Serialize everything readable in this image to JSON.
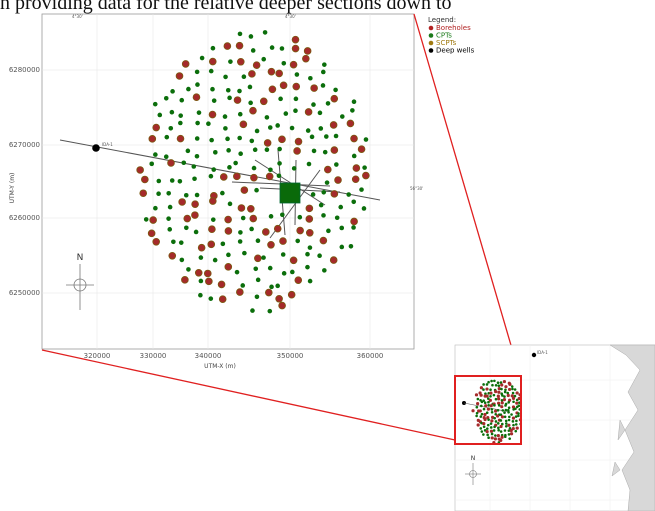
{
  "caption": "n providing data for the relative deeper sections down to",
  "main_map": {
    "x_ticks": [
      "320000",
      "330000",
      "340000",
      "350000",
      "360000"
    ],
    "y_ticks": [
      "6280000",
      "6270000",
      "6260000",
      "6250000"
    ],
    "top_ticks": [
      "4°30'",
      "4°30'"
    ],
    "side_tick": "56°30'",
    "xlabel": "UTM-X (m)",
    "ylabel": "UTM-Y (m)",
    "north_label": "N",
    "well_label": "IDA-1"
  },
  "legend": {
    "title": "Legend:",
    "items": [
      {
        "label": "Boreholes",
        "color": "#b22222"
      },
      {
        "label": "CPTs",
        "color": "#1a7a1a"
      },
      {
        "label": "SCPTs",
        "color": "#a07a10"
      },
      {
        "label": "Deep wells",
        "color": "#000000"
      }
    ]
  },
  "inset_map": {
    "well_label": "IDA-1",
    "north_label": "N",
    "highlight_color": "#e02020"
  },
  "colors": {
    "borehole_fill": "#a52a2a",
    "cpt_fill": "#0b6e0b",
    "platform": "#0a6a0a",
    "leader_line": "#e02020",
    "land": "#d8d8d8"
  }
}
